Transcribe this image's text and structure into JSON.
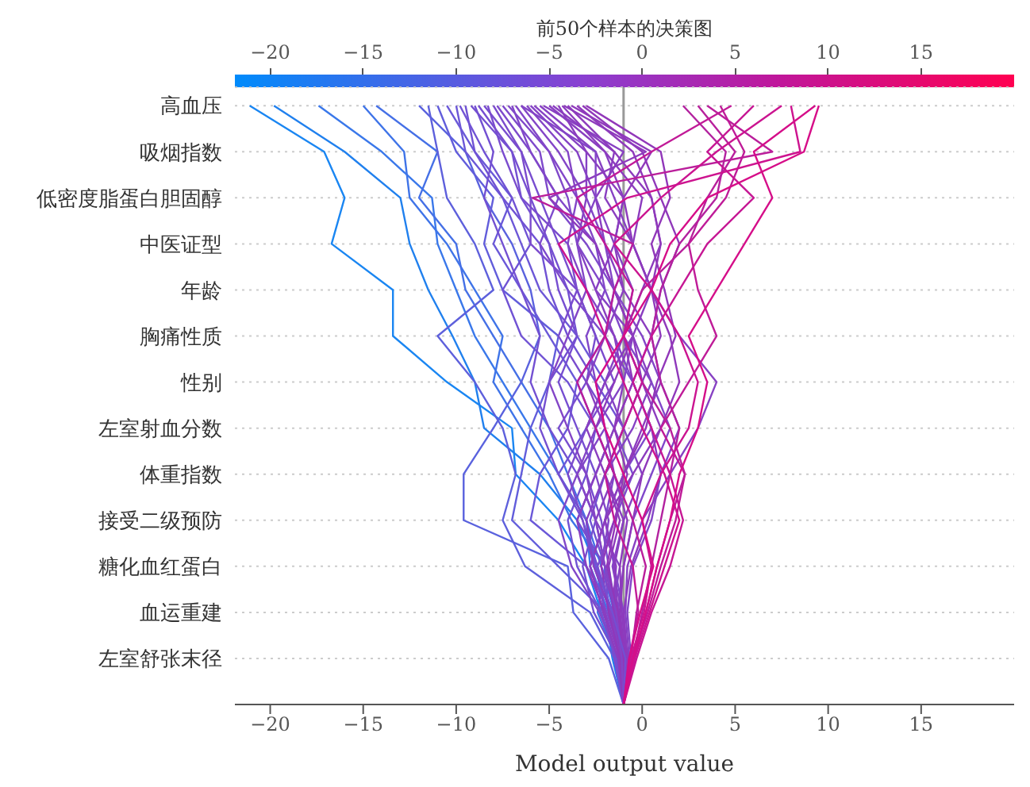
{
  "chart_data": {
    "type": "line",
    "orientation": "horizontal",
    "title": "前50个样本的决策图",
    "xlabel": "Model output value",
    "xlim": [
      -21.9,
      20.0
    ],
    "xticks": [
      {
        "value": -20,
        "label": "−20"
      },
      {
        "value": -15,
        "label": "−15"
      },
      {
        "value": -10,
        "label": "−10"
      },
      {
        "value": -5,
        "label": "−5"
      },
      0,
      5,
      10,
      15
    ],
    "clim": [
      -21.9,
      20.0
    ],
    "cticks": [
      {
        "value": -20,
        "label": "−20"
      },
      {
        "value": -15,
        "label": "−15"
      },
      {
        "value": -10,
        "label": "−10"
      },
      {
        "value": -5,
        "label": "−5"
      },
      0,
      5,
      10,
      15
    ],
    "categories": [
      "高血压",
      "吸烟指数",
      "低密度脂蛋白胆固醇",
      "中医证型",
      "年龄",
      "胸痛性质",
      "性别",
      "左室射血分数",
      "体重指数",
      "接受二级预防",
      "糖化血红蛋白",
      "血运重建",
      "左室舒张末径",
      null
    ],
    "grid": "y",
    "marker": "none",
    "line_style": "solid",
    "ref_lines": [
      {
        "axis": "x",
        "value": -1.0,
        "color": "#999999",
        "line_style": "solid"
      }
    ],
    "series": [
      {
        "color": "#1a86f2",
        "values": [
          -21.1,
          -17.1,
          -16.0,
          -16.7,
          -13.4,
          -13.4,
          -10.5,
          -7.0,
          -6.8,
          -4.5,
          -3.0,
          -2.2,
          -1.5,
          -1
        ]
      },
      {
        "color": "#2080ee",
        "values": [
          -19.8,
          -16.0,
          -13.0,
          -12.5,
          -11.5,
          -10.2,
          -9.0,
          -8.5,
          -5.5,
          -3.5,
          -2.5,
          -2.0,
          -1.6,
          -1
        ]
      },
      {
        "color": "#3a78ea",
        "values": [
          -17.4,
          -14.0,
          -11.3,
          -11.0,
          -10.0,
          -9.0,
          -7.5,
          -6.0,
          -4.5,
          -3.0,
          -2.8,
          -1.8,
          -1.2,
          -1
        ]
      },
      {
        "color": "#3f74e8",
        "values": [
          -15.0,
          -12.8,
          -12.5,
          -10.5,
          -9.0,
          -7.5,
          -8.0,
          -6.5,
          -5.0,
          -3.8,
          -2.0,
          -2.4,
          -1.4,
          -1
        ]
      },
      {
        "color": "#4570e6",
        "values": [
          -14.3,
          -11.0,
          -12.0,
          -10.0,
          -9.5,
          -8.0,
          -6.5,
          -5.0,
          -4.0,
          -3.0,
          -2.2,
          -1.5,
          -1.3,
          -1
        ]
      },
      {
        "color": "#5a62de",
        "values": [
          -12.0,
          -9.5,
          -8.5,
          -7.0,
          -6.0,
          -5.5,
          -6.5,
          -8.0,
          -9.6,
          -9.6,
          -4.0,
          -3.7,
          -1.8,
          -1
        ]
      },
      {
        "color": "#5e60dc",
        "values": [
          -11.5,
          -11.0,
          -10.5,
          -9.0,
          -8.0,
          -11.0,
          -9.0,
          -7.5,
          -6.8,
          -7.5,
          -6.3,
          -2.8,
          -1.5,
          -1
        ]
      },
      {
        "color": "#625ddb",
        "values": [
          -11.0,
          -10.0,
          -8.0,
          -8.5,
          -7.5,
          -4.5,
          -5.0,
          -6.0,
          -6.5,
          -7.0,
          -4.5,
          -2.0,
          -1.2,
          -1
        ]
      },
      {
        "color": "#6a58d8",
        "values": [
          -10.5,
          -9.0,
          -7.0,
          -8.0,
          -6.5,
          -5.0,
          -3.5,
          -4.0,
          -5.5,
          -6.0,
          -3.0,
          -1.5,
          -0.8,
          -1
        ]
      },
      {
        "color": "#6c57d7",
        "values": [
          -10.0,
          -9.5,
          -7.5,
          -6.5,
          -5.5,
          -3.5,
          -2.0,
          -3.0,
          -4.5,
          -3.0,
          -2.5,
          -1.6,
          -1.1,
          -1
        ]
      },
      {
        "color": "#7052d4",
        "values": [
          -9.8,
          -8.5,
          -7.0,
          -6.0,
          -7.5,
          -6.5,
          -4.0,
          -2.5,
          -3.0,
          -4.0,
          -3.5,
          -2.2,
          -1.4,
          -1
        ]
      },
      {
        "color": "#7052d4",
        "values": [
          -9.5,
          -9.0,
          -7.5,
          -5.5,
          -5.0,
          -4.0,
          -2.5,
          -1.0,
          -2.0,
          -2.8,
          -2.0,
          -1.2,
          -0.9,
          -1
        ]
      },
      {
        "color": "#7350d2",
        "values": [
          -9.0,
          -8.0,
          -8.5,
          -7.5,
          -6.5,
          -5.5,
          -6.0,
          -5.0,
          -3.5,
          -2.5,
          -3.2,
          -2.6,
          -1.3,
          -1
        ]
      },
      {
        "color": "#764ed1",
        "values": [
          -8.8,
          -7.0,
          -6.0,
          -5.0,
          -4.5,
          -3.5,
          -4.5,
          -3.5,
          -2.5,
          -3.5,
          -2.0,
          -1.8,
          -1.0,
          -1
        ]
      },
      {
        "color": "#784dcf",
        "values": [
          -8.5,
          -6.5,
          -5.5,
          -4.5,
          -3.5,
          -2.5,
          -3.0,
          -4.5,
          -3.0,
          -2.2,
          -1.8,
          -1.4,
          -0.7,
          -1
        ]
      },
      {
        "color": "#7a4cce",
        "values": [
          -8.3,
          -7.5,
          -6.5,
          -4.0,
          -3.5,
          -4.5,
          -3.0,
          -1.5,
          -0.5,
          -1.5,
          -2.4,
          -2.0,
          -1.5,
          -1
        ]
      },
      {
        "color": "#7b4bcd",
        "values": [
          -8.0,
          -6.5,
          -6.0,
          -6.0,
          -3.5,
          -2.5,
          -1.5,
          -3.0,
          -4.0,
          -3.2,
          -2.6,
          -1.7,
          -1.2,
          -1
        ]
      },
      {
        "color": "#7d4acc",
        "values": [
          -7.8,
          -6.0,
          -4.5,
          -5.5,
          -4.0,
          -2.0,
          -0.5,
          0.5,
          -1.0,
          -2.0,
          -1.5,
          -1.0,
          -0.8,
          -1
        ]
      },
      {
        "color": "#7e49cb",
        "values": [
          -7.5,
          -5.5,
          -5.0,
          -3.0,
          -1.5,
          -2.0,
          -3.5,
          -2.5,
          -1.5,
          -2.0,
          -2.8,
          -1.9,
          -1.1,
          -1
        ]
      },
      {
        "color": "#8048ca",
        "values": [
          -7.2,
          -5.0,
          -4.0,
          -3.5,
          -2.0,
          -1.0,
          0.5,
          1.5,
          0.5,
          -0.5,
          -1.0,
          -1.3,
          -0.9,
          -1
        ]
      },
      {
        "color": "#8147c9",
        "values": [
          -7.0,
          -6.0,
          -4.5,
          -2.5,
          -2.0,
          -3.0,
          -2.5,
          -2.0,
          -3.5,
          -4.5,
          -3.8,
          -2.3,
          -1.3,
          -1
        ]
      },
      {
        "color": "#8246c8",
        "values": [
          -6.8,
          -5.0,
          -3.5,
          -4.0,
          -3.0,
          -1.5,
          -0.5,
          -1.5,
          -2.5,
          -1.8,
          -2.2,
          -1.4,
          -1.0,
          -1
        ]
      },
      {
        "color": "#8345c7",
        "values": [
          -6.5,
          -4.5,
          -3.0,
          -2.0,
          -1.5,
          0.0,
          1.0,
          2.0,
          1.0,
          0.5,
          -0.5,
          -0.8,
          -0.6,
          -1
        ]
      },
      {
        "color": "#8444c6",
        "values": [
          -6.2,
          -4.0,
          -3.5,
          -2.5,
          -1.5,
          -0.5,
          -1.0,
          -2.5,
          -3.5,
          -2.5,
          -1.2,
          -1.6,
          -1.2,
          -1
        ]
      },
      {
        "color": "#8543c5",
        "values": [
          -6.0,
          -3.5,
          -2.5,
          -1.5,
          -0.5,
          -1.0,
          -2.0,
          -1.0,
          0.0,
          -1.0,
          -1.6,
          -1.1,
          -0.8,
          -1
        ]
      },
      {
        "color": "#8642c4",
        "values": [
          -5.8,
          -3.0,
          -3.0,
          -3.5,
          -2.5,
          -0.5,
          0.5,
          -0.5,
          -2.0,
          -3.0,
          -2.6,
          -1.7,
          -1.1,
          -1
        ]
      },
      {
        "color": "#8741c3",
        "values": [
          -5.5,
          -2.5,
          -1.5,
          -0.5,
          0.5,
          2.0,
          4.0,
          3.0,
          1.5,
          0.0,
          -0.8,
          -0.9,
          -0.7,
          -1
        ]
      },
      {
        "color": "#8840c2",
        "values": [
          -5.3,
          -1.0,
          -2.5,
          -2.0,
          -1.0,
          -2.0,
          -3.0,
          -2.0,
          -1.5,
          -2.5,
          -2.0,
          -1.5,
          -1.0,
          -1
        ]
      },
      {
        "color": "#893fc1",
        "values": [
          -5.0,
          -2.0,
          -1.0,
          -1.5,
          -2.5,
          -1.5,
          -1.0,
          -1.5,
          -2.5,
          -3.5,
          -3.0,
          -2.0,
          -1.2,
          -1
        ]
      },
      {
        "color": "#8a3ec0",
        "values": [
          -4.8,
          -1.5,
          -2.0,
          -0.5,
          0.5,
          -0.5,
          -2.0,
          -3.0,
          -2.0,
          -1.0,
          -1.5,
          -1.3,
          -0.9,
          -1
        ]
      },
      {
        "color": "#8b3dbf",
        "values": [
          -4.5,
          -3.0,
          -1.0,
          -1.5,
          -1.0,
          0.5,
          1.0,
          0.0,
          -1.0,
          -2.0,
          -1.4,
          -1.6,
          -1.0,
          -1
        ]
      },
      {
        "color": "#8c3cbe",
        "values": [
          -4.3,
          -2.0,
          0.0,
          -0.5,
          -1.5,
          -0.5,
          0.0,
          1.0,
          -0.5,
          -2.0,
          -2.8,
          -2.1,
          -1.3,
          -1
        ]
      },
      {
        "color": "#8d3bbd",
        "values": [
          -4.0,
          -1.5,
          0.5,
          1.0,
          0.0,
          -1.0,
          -0.5,
          0.5,
          1.0,
          0.3,
          -0.6,
          -1.0,
          -0.8,
          -1
        ]
      },
      {
        "color": "#8e3abc",
        "values": [
          -3.8,
          0.5,
          -1.0,
          -0.5,
          0.5,
          1.0,
          0.0,
          -1.0,
          -2.0,
          -1.2,
          -1.8,
          -1.5,
          -1.1,
          -1
        ]
      },
      {
        "color": "#8f39bb",
        "values": [
          -3.5,
          -0.5,
          0.5,
          1.0,
          0.5,
          1.5,
          2.0,
          1.0,
          0.0,
          -0.5,
          -1.0,
          -1.2,
          -0.9,
          -1
        ]
      },
      {
        "color": "#9038ba",
        "values": [
          -3.2,
          0.0,
          1.0,
          2.0,
          1.0,
          0.5,
          -0.5,
          -1.5,
          -0.8,
          -1.5,
          -2.2,
          -1.8,
          -1.2,
          -1
        ]
      },
      {
        "color": "#9137b9",
        "values": [
          -3.0,
          1.0,
          1.5,
          0.5,
          1.2,
          1.8,
          0.8,
          0.2,
          -1.0,
          -1.4,
          -1.9,
          -1.3,
          -1.0,
          -1
        ]
      },
      {
        "color": "#8d3bbd",
        "values": [
          -4.2,
          0.2,
          -5.0,
          -2.5,
          -1.5,
          -0.5,
          -1.5,
          -2.5,
          -1.5,
          -0.8,
          -1.2,
          -1.1,
          -0.8,
          -1
        ]
      },
      {
        "color": "#8345c7",
        "values": [
          -6.5,
          -2.5,
          -2.5,
          -3.5,
          -3.0,
          -4.0,
          -5.0,
          -4.0,
          -3.0,
          -2.5,
          -2.0,
          -1.4,
          -1.1,
          -1
        ]
      },
      {
        "color": "#744fd1",
        "values": [
          -9.2,
          -7.0,
          -6.5,
          -5.0,
          -4.0,
          -3.5,
          -5.0,
          -5.5,
          -4.5,
          -3.2,
          -2.4,
          -1.6,
          -0.9,
          -1
        ]
      },
      {
        "color": "#b3229f",
        "values": [
          2.2,
          4.5,
          4.0,
          2.0,
          1.0,
          0.5,
          1.0,
          2.0,
          1.5,
          1.0,
          0.5,
          0.0,
          -0.5,
          -1
        ]
      },
      {
        "color": "#b8209c",
        "values": [
          3.0,
          5.0,
          3.5,
          2.5,
          0.0,
          -1.0,
          0.0,
          1.5,
          2.3,
          1.5,
          0.8,
          0.2,
          -0.4,
          -1
        ]
      },
      {
        "color": "#ba1e9b",
        "values": [
          3.5,
          7.0,
          -5.9,
          -0.5,
          -1.5,
          -2.0,
          -3.5,
          -2.5,
          -1.5,
          -0.5,
          0.2,
          -0.3,
          -0.6,
          -1
        ]
      },
      {
        "color": "#bf1b98",
        "values": [
          4.2,
          5.5,
          4.5,
          2.5,
          3.0,
          4.0,
          2.5,
          1.0,
          2.3,
          1.8,
          1.0,
          0.3,
          -0.5,
          -1
        ]
      },
      {
        "color": "#c11a97",
        "values": [
          4.8,
          0.5,
          -3.5,
          -2.0,
          -0.5,
          -1.0,
          0.0,
          -1.0,
          -2.0,
          -1.5,
          -0.5,
          -0.2,
          -0.7,
          -1
        ]
      },
      {
        "color": "#c61794",
        "values": [
          6.0,
          3.5,
          6.0,
          3.5,
          2.0,
          0.5,
          -0.5,
          0.5,
          1.5,
          2.2,
          1.5,
          0.5,
          -0.3,
          -1
        ]
      },
      {
        "color": "#cb1490",
        "values": [
          7.5,
          4.0,
          1.0,
          -1.5,
          0.5,
          2.0,
          3.0,
          2.5,
          1.0,
          0.0,
          0.5,
          0.1,
          -0.6,
          -1
        ]
      },
      {
        "color": "#cd138f",
        "values": [
          8.0,
          8.5,
          -0.8,
          -4.5,
          -3.0,
          -2.0,
          -1.0,
          0.0,
          1.2,
          2.0,
          1.2,
          0.4,
          -0.4,
          -1
        ]
      },
      {
        "color": "#d50e89",
        "values": [
          9.3,
          6.0,
          7.0,
          5.5,
          4.0,
          2.5,
          3.5,
          3.0,
          2.0,
          1.5,
          0.8,
          0.2,
          -0.5,
          -1
        ]
      },
      {
        "color": "#d60d88",
        "values": [
          9.5,
          8.7,
          3.5,
          1.5,
          0.5,
          -1.0,
          -2.5,
          -2.0,
          -1.0,
          0.0,
          0.6,
          -0.1,
          -0.7,
          -1
        ]
      }
    ]
  }
}
